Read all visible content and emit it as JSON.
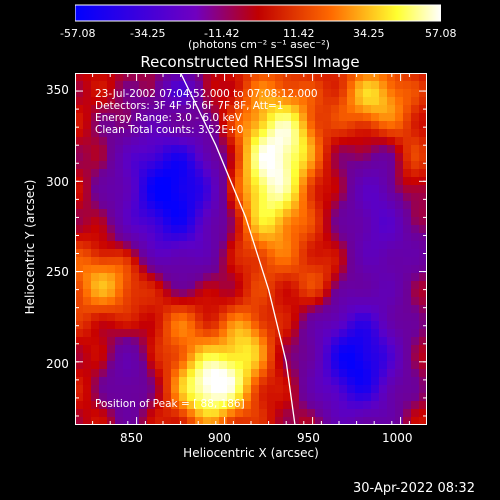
{
  "chart_data": {
    "type": "heatmap",
    "title": "Reconstructed RHESSI Image",
    "xlabel": "Heliocentric X (arcsec)",
    "ylabel": "Heliocentric Y (arcsec)",
    "xlim": [
      815,
      1015
    ],
    "ylim": [
      165,
      360
    ],
    "xticks": [
      "850",
      "900",
      "950",
      "1000"
    ],
    "yticks": [
      "200",
      "250",
      "300",
      "350"
    ],
    "xtick_values": [
      850,
      900,
      950,
      1000
    ],
    "ytick_values": [
      200,
      250,
      300,
      350
    ],
    "colorbar": {
      "min": -57.08,
      "max": 57.08,
      "tick_labels": [
        "-57.08",
        "-34.25",
        "-11.42",
        "11.42",
        "34.25",
        "57.08"
      ],
      "unit_label": "(photons cm⁻² s⁻¹ asec⁻²)",
      "colors": [
        "#0000ff",
        "#6a00b0",
        "#d00000",
        "#ff7000",
        "#ffff30",
        "#ffffff"
      ]
    },
    "annotations": [
      "23-Jul-2002 07:04:52.000 to 07:08:12.000",
      "Detectors: 3F 4F 5F 6F 7F 8F, Att=1",
      "Energy Range: 3.0 - 6.0 keV",
      "Clean    Total counts: 3.52E+0",
      "Position of Peak = [ 88, 186]"
    ],
    "sources": [
      {
        "x": 925,
        "y": 305,
        "sx": 15,
        "sy": 32,
        "amp": 52
      },
      {
        "x": 940,
        "y": 325,
        "sx": 10,
        "sy": 15,
        "amp": 18
      },
      {
        "x": 893,
        "y": 187,
        "sx": 14,
        "sy": 14,
        "amp": 57
      },
      {
        "x": 912,
        "y": 210,
        "sx": 10,
        "sy": 14,
        "amp": 28
      },
      {
        "x": 875,
        "y": 220,
        "sx": 12,
        "sy": 12,
        "amp": 18
      },
      {
        "x": 835,
        "y": 245,
        "sx": 18,
        "sy": 14,
        "amp": 30
      },
      {
        "x": 985,
        "y": 345,
        "sx": 14,
        "sy": 14,
        "amp": 34
      },
      {
        "x": 1005,
        "y": 300,
        "sx": 10,
        "sy": 22,
        "amp": 32
      },
      {
        "x": 875,
        "y": 335,
        "sx": 14,
        "sy": 12,
        "amp": 14
      },
      {
        "x": 955,
        "y": 245,
        "sx": 10,
        "sy": 12,
        "amp": 14
      },
      {
        "x": 870,
        "y": 295,
        "sx": 22,
        "sy": 32,
        "amp": -62
      },
      {
        "x": 875,
        "y": 350,
        "sx": 8,
        "sy": 7,
        "amp": -30
      },
      {
        "x": 975,
        "y": 200,
        "sx": 18,
        "sy": 25,
        "amp": -60
      },
      {
        "x": 995,
        "y": 285,
        "sx": 18,
        "sy": 28,
        "amp": -42
      },
      {
        "x": 845,
        "y": 190,
        "sx": 10,
        "sy": 20,
        "amp": -22
      }
    ],
    "limb_curve": [
      [
        875,
        360
      ],
      [
        895,
        320
      ],
      [
        912,
        280
      ],
      [
        925,
        240
      ],
      [
        935,
        200
      ],
      [
        940,
        165
      ]
    ],
    "limb_color": "#ffffff"
  },
  "timestamp": "30-Apr-2022 08:32"
}
